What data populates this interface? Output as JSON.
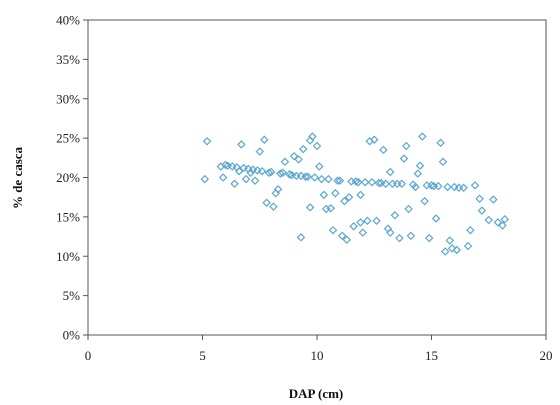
{
  "chart_data": {
    "type": "scatter",
    "title": "",
    "xlabel": "DAP (cm)",
    "ylabel": "% de casca",
    "xlim": [
      0,
      20
    ],
    "ylim": [
      0,
      40
    ],
    "x_ticks": [
      "0",
      "5",
      "10",
      "15",
      "20"
    ],
    "y_ticks": [
      "0%",
      "5%",
      "10%",
      "15%",
      "20%",
      "25%",
      "30%",
      "35%",
      "40%"
    ],
    "grid": false,
    "legend": "none",
    "marker": "diamond",
    "colors": {
      "marker": "#5aa6d6"
    },
    "series": [
      {
        "values": [
          [
            5.1,
            19.8
          ],
          [
            5.2,
            24.6
          ],
          [
            5.8,
            21.4
          ],
          [
            5.9,
            20.0
          ],
          [
            6.0,
            21.6
          ],
          [
            6.1,
            21.5
          ],
          [
            6.3,
            21.4
          ],
          [
            6.4,
            19.2
          ],
          [
            6.5,
            21.3
          ],
          [
            6.6,
            20.8
          ],
          [
            6.7,
            24.2
          ],
          [
            6.8,
            21.2
          ],
          [
            6.9,
            19.8
          ],
          [
            7.0,
            21.1
          ],
          [
            7.1,
            20.6
          ],
          [
            7.2,
            21.0
          ],
          [
            7.3,
            19.6
          ],
          [
            7.4,
            20.9
          ],
          [
            7.5,
            23.3
          ],
          [
            7.6,
            20.8
          ],
          [
            7.7,
            24.8
          ],
          [
            7.8,
            16.8
          ],
          [
            7.9,
            20.6
          ],
          [
            8.0,
            20.7
          ],
          [
            8.1,
            16.3
          ],
          [
            8.2,
            18.0
          ],
          [
            8.3,
            18.5
          ],
          [
            8.4,
            20.5
          ],
          [
            8.5,
            20.6
          ],
          [
            8.6,
            22.0
          ],
          [
            8.8,
            20.4
          ],
          [
            8.9,
            20.3
          ],
          [
            9.0,
            22.7
          ],
          [
            9.1,
            20.2
          ],
          [
            9.2,
            22.3
          ],
          [
            9.3,
            20.2
          ],
          [
            9.4,
            23.6
          ],
          [
            9.5,
            20.1
          ],
          [
            9.6,
            20.1
          ],
          [
            9.7,
            24.7
          ],
          [
            9.8,
            25.2
          ],
          [
            9.7,
            16.2
          ],
          [
            9.9,
            20.0
          ],
          [
            10.0,
            24.0
          ],
          [
            10.1,
            21.4
          ],
          [
            10.2,
            19.8
          ],
          [
            10.3,
            17.8
          ],
          [
            10.4,
            16.0
          ],
          [
            10.5,
            19.8
          ],
          [
            10.6,
            16.1
          ],
          [
            10.7,
            13.3
          ],
          [
            10.8,
            18.0
          ],
          [
            10.9,
            19.6
          ],
          [
            11.0,
            19.6
          ],
          [
            11.1,
            12.6
          ],
          [
            11.2,
            17.0
          ],
          [
            11.3,
            12.1
          ],
          [
            11.4,
            17.5
          ],
          [
            11.5,
            19.5
          ],
          [
            11.6,
            13.8
          ],
          [
            11.7,
            19.5
          ],
          [
            11.8,
            19.4
          ],
          [
            11.9,
            17.8
          ],
          [
            12.0,
            13.0
          ],
          [
            12.1,
            19.4
          ],
          [
            12.2,
            14.5
          ],
          [
            12.3,
            24.6
          ],
          [
            12.4,
            19.4
          ],
          [
            12.5,
            24.8
          ],
          [
            12.6,
            14.5
          ],
          [
            12.7,
            19.3
          ],
          [
            12.8,
            19.3
          ],
          [
            12.9,
            23.5
          ],
          [
            13.0,
            19.2
          ],
          [
            13.1,
            13.5
          ],
          [
            13.2,
            13.0
          ],
          [
            13.3,
            19.2
          ],
          [
            13.4,
            15.2
          ],
          [
            13.5,
            19.2
          ],
          [
            13.6,
            12.3
          ],
          [
            13.7,
            19.2
          ],
          [
            13.8,
            22.4
          ],
          [
            13.9,
            24.0
          ],
          [
            14.0,
            16.0
          ],
          [
            14.1,
            12.6
          ],
          [
            14.2,
            19.1
          ],
          [
            14.3,
            18.8
          ],
          [
            14.4,
            20.5
          ],
          [
            14.5,
            21.5
          ],
          [
            14.6,
            25.2
          ],
          [
            14.7,
            17.0
          ],
          [
            14.8,
            19.0
          ],
          [
            14.9,
            12.3
          ],
          [
            15.0,
            19.0
          ],
          [
            15.1,
            18.9
          ],
          [
            15.2,
            14.8
          ],
          [
            15.3,
            18.9
          ],
          [
            15.4,
            24.4
          ],
          [
            15.5,
            22.0
          ],
          [
            15.6,
            10.6
          ],
          [
            15.7,
            18.8
          ],
          [
            15.8,
            12.0
          ],
          [
            15.9,
            11.0
          ],
          [
            16.0,
            18.8
          ],
          [
            16.1,
            10.8
          ],
          [
            16.2,
            18.7
          ],
          [
            16.4,
            18.7
          ],
          [
            16.6,
            11.3
          ],
          [
            16.7,
            13.3
          ],
          [
            16.9,
            19.0
          ],
          [
            17.1,
            17.3
          ],
          [
            17.2,
            15.8
          ],
          [
            17.5,
            14.6
          ],
          [
            17.7,
            17.2
          ],
          [
            17.9,
            14.3
          ],
          [
            18.1,
            13.9
          ],
          [
            18.2,
            14.7
          ],
          [
            13.2,
            20.7
          ],
          [
            11.9,
            14.3
          ],
          [
            9.3,
            12.4
          ]
        ]
      }
    ]
  }
}
